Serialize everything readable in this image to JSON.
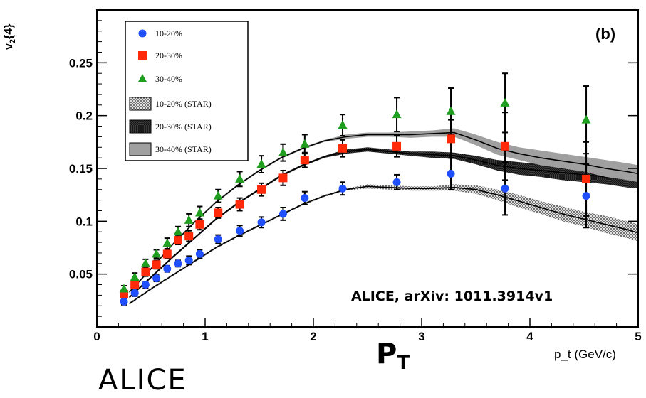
{
  "chart_data": {
    "type": "scatter",
    "panel_label": "(b)",
    "xlabel": "p_t (GeV/c)",
    "ylabel": "v_2{4}",
    "xlim": [
      0,
      5
    ],
    "ylim": [
      0,
      0.3
    ],
    "xticks": [
      0,
      1,
      2,
      3,
      4,
      5
    ],
    "yticks": [
      0.05,
      0.1,
      0.15,
      0.2,
      0.25
    ],
    "ytick_labels": [
      "0.05",
      "0.1",
      "0.15",
      "0.2",
      "0.25"
    ],
    "legend_position": "top-left",
    "series": [
      {
        "name": "10-20%",
        "marker": "circle",
        "color": "#1f4fff",
        "x": [
          0.25,
          0.35,
          0.45,
          0.55,
          0.65,
          0.75,
          0.85,
          0.95,
          1.12,
          1.32,
          1.52,
          1.72,
          1.92,
          2.27,
          2.77,
          3.27,
          3.77,
          4.52
        ],
        "y": [
          0.024,
          0.032,
          0.04,
          0.046,
          0.055,
          0.06,
          0.063,
          0.069,
          0.083,
          0.091,
          0.099,
          0.107,
          0.122,
          0.131,
          0.137,
          0.145,
          0.131,
          0.124
        ],
        "err": [
          0.003,
          0.003,
          0.003,
          0.003,
          0.003,
          0.003,
          0.004,
          0.004,
          0.004,
          0.005,
          0.005,
          0.006,
          0.006,
          0.006,
          0.007,
          0.015,
          0.025,
          0.03
        ]
      },
      {
        "name": "20-30%",
        "marker": "square",
        "color": "#ff2a0a",
        "x": [
          0.25,
          0.35,
          0.45,
          0.55,
          0.65,
          0.75,
          0.85,
          0.95,
          1.12,
          1.32,
          1.52,
          1.72,
          1.92,
          2.27,
          2.77,
          3.27,
          3.77,
          4.52
        ],
        "y": [
          0.031,
          0.04,
          0.052,
          0.059,
          0.069,
          0.082,
          0.086,
          0.097,
          0.108,
          0.116,
          0.13,
          0.141,
          0.158,
          0.169,
          0.171,
          0.178,
          0.171,
          0.14
        ],
        "err": [
          0.003,
          0.003,
          0.004,
          0.004,
          0.004,
          0.004,
          0.005,
          0.005,
          0.005,
          0.006,
          0.006,
          0.007,
          0.007,
          0.008,
          0.01,
          0.018,
          0.032,
          0.035
        ]
      },
      {
        "name": "30-40%",
        "marker": "triangle",
        "color": "#1f9e1f",
        "x": [
          0.25,
          0.35,
          0.45,
          0.55,
          0.65,
          0.75,
          0.85,
          0.95,
          1.12,
          1.32,
          1.52,
          1.72,
          1.92,
          2.27,
          2.77,
          3.27,
          3.77,
          4.52
        ],
        "y": [
          0.036,
          0.047,
          0.06,
          0.069,
          0.079,
          0.09,
          0.101,
          0.108,
          0.124,
          0.14,
          0.154,
          0.165,
          0.173,
          0.191,
          0.201,
          0.204,
          0.212,
          0.196
        ],
        "err": [
          0.003,
          0.004,
          0.004,
          0.004,
          0.005,
          0.005,
          0.006,
          0.006,
          0.006,
          0.007,
          0.008,
          0.008,
          0.009,
          0.01,
          0.016,
          0.022,
          0.028,
          0.032
        ]
      }
    ],
    "bands": [
      {
        "name": "10-20% (STAR)",
        "fill": "hatch-light",
        "x": [
          0.3,
          0.5,
          0.7,
          0.9,
          1.1,
          1.3,
          1.5,
          1.7,
          1.9,
          2.1,
          2.3,
          2.5,
          2.7,
          2.9,
          3.1,
          3.3,
          3.5,
          3.7,
          3.9,
          4.1,
          4.3,
          4.5,
          4.7,
          4.9,
          5.0
        ],
        "y": [
          0.022,
          0.036,
          0.049,
          0.062,
          0.075,
          0.086,
          0.096,
          0.106,
          0.116,
          0.124,
          0.13,
          0.133,
          0.132,
          0.131,
          0.131,
          0.132,
          0.13,
          0.125,
          0.119,
          0.113,
          0.107,
          0.102,
          0.097,
          0.092,
          0.089
        ],
        "halfwidth": [
          0.001,
          0.001,
          0.001,
          0.001,
          0.001,
          0.001,
          0.001,
          0.001,
          0.001,
          0.001,
          0.001,
          0.002,
          0.002,
          0.002,
          0.002,
          0.003,
          0.004,
          0.005,
          0.006,
          0.006,
          0.007,
          0.007,
          0.008,
          0.008,
          0.008
        ]
      },
      {
        "name": "20-30% (STAR)",
        "fill": "hatch-dark",
        "x": [
          0.3,
          0.5,
          0.7,
          0.9,
          1.1,
          1.3,
          1.5,
          1.7,
          1.9,
          2.1,
          2.3,
          2.5,
          2.7,
          2.9,
          3.1,
          3.3,
          3.5,
          3.7,
          3.9,
          4.1,
          4.3,
          4.5,
          4.7,
          4.9,
          5.0
        ],
        "y": [
          0.028,
          0.047,
          0.066,
          0.084,
          0.102,
          0.117,
          0.13,
          0.143,
          0.153,
          0.161,
          0.166,
          0.168,
          0.166,
          0.164,
          0.163,
          0.162,
          0.158,
          0.153,
          0.15,
          0.148,
          0.146,
          0.144,
          0.142,
          0.14,
          0.139
        ],
        "halfwidth": [
          0.001,
          0.001,
          0.001,
          0.001,
          0.001,
          0.001,
          0.001,
          0.001,
          0.001,
          0.001,
          0.002,
          0.002,
          0.002,
          0.002,
          0.003,
          0.003,
          0.004,
          0.005,
          0.006,
          0.006,
          0.007,
          0.007,
          0.007,
          0.008,
          0.008
        ]
      },
      {
        "name": "30-40% (STAR)",
        "fill": "gray",
        "x": [
          0.3,
          0.5,
          0.7,
          0.9,
          1.1,
          1.3,
          1.5,
          1.7,
          1.9,
          2.1,
          2.3,
          2.5,
          2.7,
          2.9,
          3.1,
          3.3,
          3.5,
          3.7,
          3.9,
          4.1,
          4.3,
          4.5,
          4.7,
          4.9,
          5.0
        ],
        "y": [
          0.033,
          0.055,
          0.078,
          0.099,
          0.118,
          0.134,
          0.148,
          0.16,
          0.169,
          0.176,
          0.18,
          0.182,
          0.182,
          0.182,
          0.183,
          0.184,
          0.177,
          0.169,
          0.164,
          0.16,
          0.157,
          0.154,
          0.15,
          0.147,
          0.145
        ],
        "halfwidth": [
          0.001,
          0.001,
          0.001,
          0.001,
          0.001,
          0.001,
          0.001,
          0.001,
          0.001,
          0.001,
          0.002,
          0.002,
          0.002,
          0.003,
          0.003,
          0.004,
          0.005,
          0.006,
          0.006,
          0.007,
          0.007,
          0.007,
          0.008,
          0.008,
          0.008
        ]
      }
    ]
  },
  "annotations": {
    "credit": "ALICE, arXiv: 1011.3914v1",
    "big_pt_main": "P",
    "big_pt_sub": "T",
    "alice_word": "ALICE"
  },
  "colors": {
    "blue": "#1f4fff",
    "red": "#ff2a0a",
    "green": "#1f9e1f",
    "band_gray": "#9a9a9a"
  }
}
